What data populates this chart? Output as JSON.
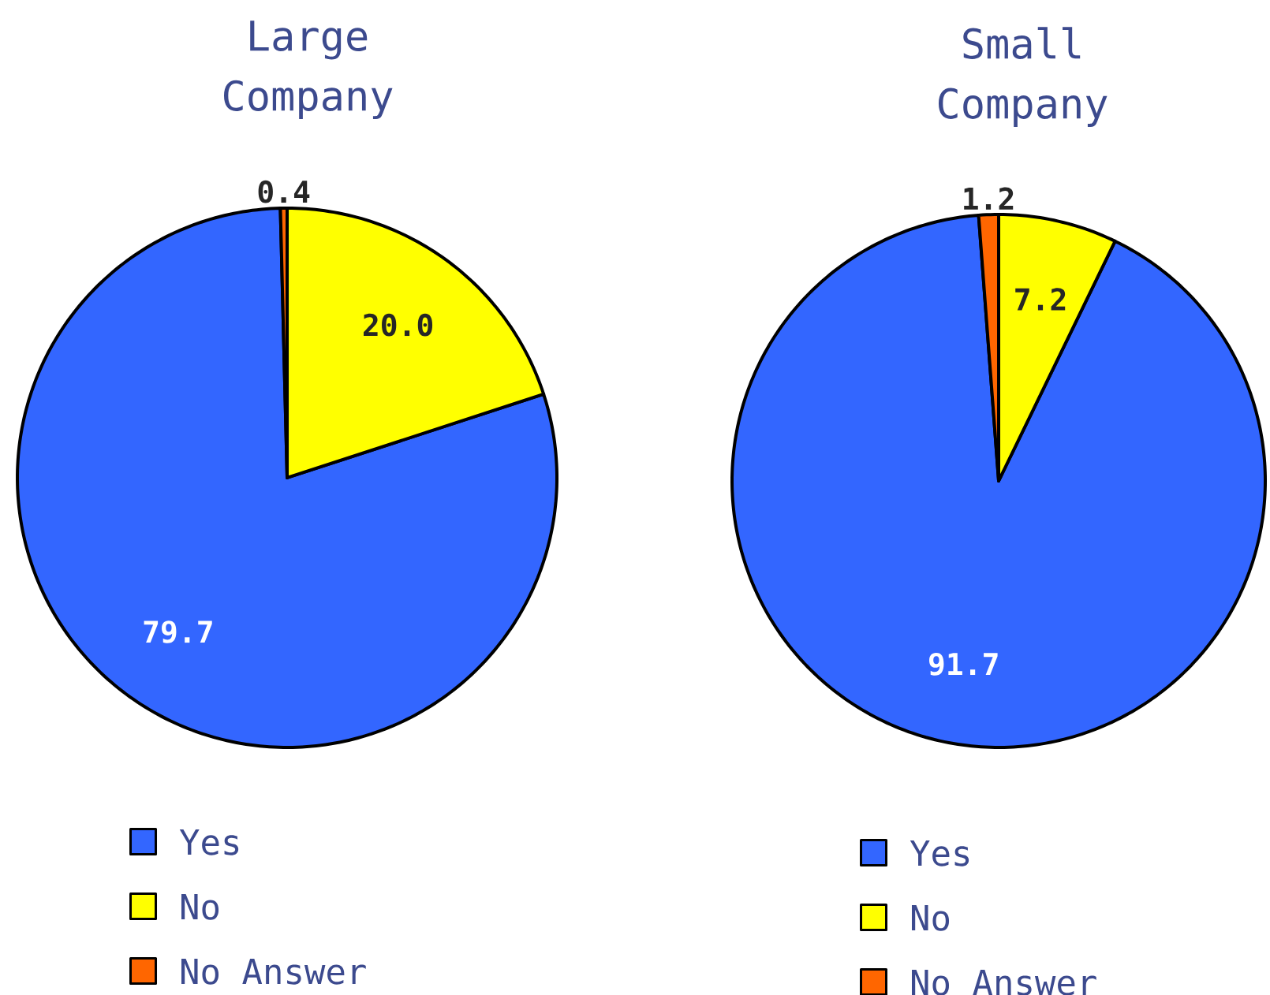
{
  "chart_data": [
    {
      "type": "pie",
      "title": "Large Company",
      "categories": [
        "Yes",
        "No",
        "No Answer"
      ],
      "values": [
        79.7,
        20.0,
        0.4
      ],
      "value_labels": [
        "79.7",
        "20.0",
        "0.4"
      ],
      "colors": [
        "#3366ff",
        "#ffff00",
        "#ff6600"
      ],
      "legend": "bottom"
    },
    {
      "type": "pie",
      "title": "Small Company",
      "categories": [
        "Yes",
        "No",
        "No Answer"
      ],
      "values": [
        91.7,
        7.2,
        1.2
      ],
      "value_labels": [
        "91.7",
        "7.2",
        "1.2"
      ],
      "colors": [
        "#3366ff",
        "#ffff00",
        "#ff6600"
      ],
      "legend": "bottom"
    }
  ]
}
